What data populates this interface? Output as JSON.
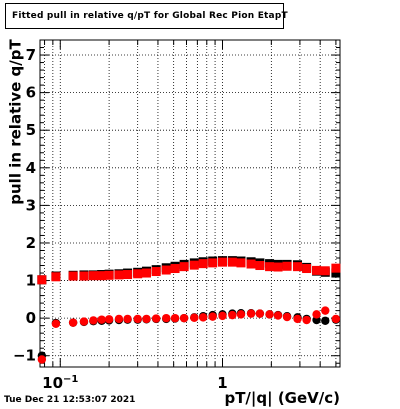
{
  "canvas": {
    "title": "Fitted pull in relative q/pT for Global Rec Pion EtapT",
    "timestamp": "Tue Dec 21 12:53:07 2021"
  },
  "chart_data": {
    "type": "scatter",
    "title": "Fitted pull in relative q/pT for Global Rec Pion EtapT",
    "xlabel": "pT/|q| (GeV/c)",
    "ylabel": "pull in relative q/pT",
    "xscale": "log",
    "xlim": [
      0.075,
      5.3
    ],
    "ylim": [
      -1.3,
      7.4
    ],
    "grid": true,
    "x_tick_labels": [
      {
        "value": 0.1,
        "label": "10^-1"
      },
      {
        "value": 1,
        "label": "1"
      }
    ],
    "y_tick_labels": [
      {
        "value": -1,
        "label": "−1"
      },
      {
        "value": 0,
        "label": "0"
      },
      {
        "value": 1,
        "label": "1"
      },
      {
        "value": 2,
        "label": "2"
      },
      {
        "value": 3,
        "label": "3"
      },
      {
        "value": 4,
        "label": "4"
      },
      {
        "value": 5,
        "label": "5"
      },
      {
        "value": 6,
        "label": "6"
      },
      {
        "value": 7,
        "label": "7"
      }
    ],
    "x": [
      0.077,
      0.094,
      0.12,
      0.14,
      0.16,
      0.18,
      0.2,
      0.23,
      0.26,
      0.3,
      0.34,
      0.39,
      0.45,
      0.51,
      0.58,
      0.67,
      0.76,
      0.87,
      1.0,
      1.15,
      1.3,
      1.5,
      1.7,
      1.95,
      2.2,
      2.5,
      2.9,
      3.3,
      3.8,
      4.3,
      5.0
    ],
    "series": [
      {
        "color": "#000000",
        "marker": "square",
        "values": [
          1.02,
          1.12,
          1.14,
          1.15,
          1.15,
          1.16,
          1.17,
          1.18,
          1.2,
          1.22,
          1.25,
          1.29,
          1.34,
          1.38,
          1.43,
          1.47,
          1.5,
          1.52,
          1.53,
          1.53,
          1.52,
          1.5,
          1.47,
          1.45,
          1.43,
          1.43,
          1.42,
          1.35,
          1.25,
          1.22,
          1.2
        ]
      },
      {
        "color": "#ff0000",
        "marker": "square",
        "values": [
          1.02,
          1.1,
          1.12,
          1.12,
          1.13,
          1.13,
          1.14,
          1.15,
          1.16,
          1.18,
          1.2,
          1.24,
          1.28,
          1.32,
          1.37,
          1.41,
          1.45,
          1.47,
          1.49,
          1.49,
          1.47,
          1.44,
          1.4,
          1.37,
          1.36,
          1.38,
          1.37,
          1.32,
          1.27,
          1.26,
          1.33
        ]
      },
      {
        "color": "#000000",
        "marker": "circle",
        "values": [
          -1.0,
          -0.13,
          -0.12,
          -0.1,
          -0.08,
          -0.07,
          -0.06,
          -0.05,
          -0.04,
          -0.04,
          -0.03,
          -0.02,
          -0.02,
          -0.01,
          0.0,
          0.02,
          0.05,
          0.08,
          0.1,
          0.12,
          0.13,
          0.13,
          0.12,
          0.1,
          0.08,
          0.05,
          0.02,
          -0.02,
          -0.05,
          -0.07,
          -0.04
        ]
      },
      {
        "color": "#ff0000",
        "marker": "circle",
        "values": [
          -1.1,
          -0.15,
          -0.12,
          -0.09,
          -0.06,
          -0.04,
          -0.03,
          -0.02,
          -0.02,
          -0.02,
          -0.02,
          -0.01,
          0.0,
          0.0,
          0.0,
          0.01,
          0.02,
          0.04,
          0.06,
          0.08,
          0.1,
          0.12,
          0.12,
          0.1,
          0.07,
          0.03,
          -0.02,
          -0.05,
          0.1,
          0.2,
          -0.02
        ]
      }
    ]
  }
}
